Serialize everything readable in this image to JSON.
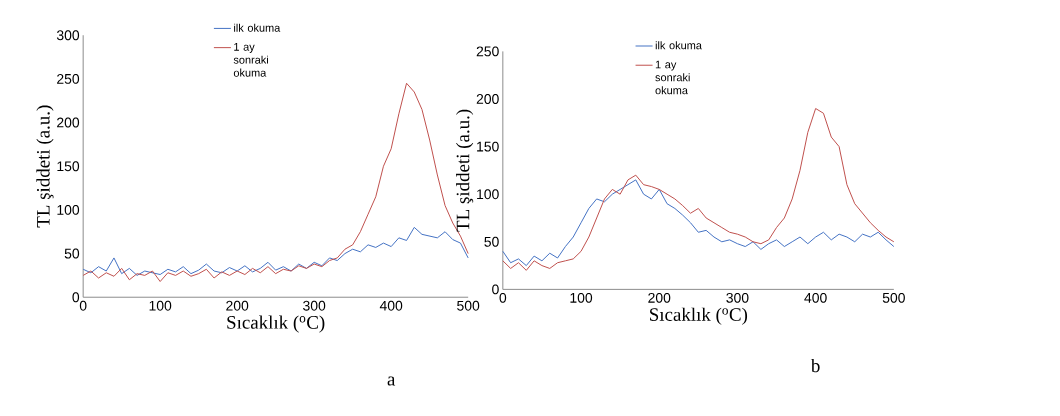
{
  "chart_data": [
    {
      "type": "line",
      "xlabel": "Sıcaklık ($^{o}$C)",
      "ylabel": "TL şiddeti (a.u.)",
      "annotations": [
        "a"
      ],
      "marker": "none",
      "legend": "top",
      "x": [
        0,
        10,
        20,
        30,
        40,
        50,
        60,
        70,
        80,
        90,
        100,
        110,
        120,
        130,
        140,
        150,
        160,
        170,
        180,
        190,
        200,
        210,
        220,
        230,
        240,
        250,
        260,
        270,
        280,
        290,
        300,
        310,
        320,
        330,
        340,
        350,
        360,
        370,
        380,
        390,
        400,
        410,
        420,
        430,
        440,
        450,
        460,
        470,
        480,
        490,
        500
      ],
      "xlim": [
        0,
        500
      ],
      "xticks": [
        0,
        100,
        200,
        300,
        400,
        500
      ],
      "ylim": [
        0,
        300
      ],
      "yticks": [
        0,
        50,
        100,
        150,
        200,
        250,
        300
      ],
      "series": [
        {
          "name": "ilk okuma",
          "color": "#4472c4",
          "values": [
            32,
            28,
            35,
            30,
            45,
            27,
            33,
            25,
            30,
            28,
            26,
            32,
            29,
            35,
            27,
            31,
            38,
            30,
            28,
            34,
            30,
            36,
            29,
            33,
            40,
            31,
            35,
            30,
            38,
            33,
            40,
            36,
            45,
            42,
            50,
            55,
            52,
            60,
            57,
            62,
            58,
            68,
            65,
            80,
            72,
            70,
            68,
            75,
            66,
            62,
            45
          ]
        },
        {
          "name": "1 ay sonraki okuma",
          "color": "#c0504d",
          "values": [
            25,
            30,
            22,
            28,
            24,
            33,
            20,
            27,
            25,
            30,
            18,
            28,
            25,
            30,
            24,
            27,
            32,
            22,
            29,
            25,
            30,
            26,
            33,
            28,
            35,
            27,
            32,
            30,
            36,
            33,
            38,
            35,
            42,
            45,
            55,
            60,
            75,
            95,
            115,
            150,
            170,
            210,
            245,
            235,
            215,
            180,
            140,
            105,
            85,
            70,
            50
          ]
        }
      ]
    },
    {
      "type": "line",
      "xlabel": "Sıcaklık ($^{o}$C)",
      "ylabel": "TL şiddeti (a.u.)",
      "annotations": [
        "b"
      ],
      "marker": "none",
      "legend": "top",
      "x": [
        0,
        10,
        20,
        30,
        40,
        50,
        60,
        70,
        80,
        90,
        100,
        110,
        120,
        130,
        140,
        150,
        160,
        170,
        180,
        190,
        200,
        210,
        220,
        230,
        240,
        250,
        260,
        270,
        280,
        290,
        300,
        310,
        320,
        330,
        340,
        350,
        360,
        370,
        380,
        390,
        400,
        410,
        420,
        430,
        440,
        450,
        460,
        470,
        480,
        490,
        500
      ],
      "xlim": [
        0,
        500
      ],
      "xticks": [
        0,
        100,
        200,
        300,
        400,
        500
      ],
      "ylim": [
        0,
        250
      ],
      "yticks": [
        0,
        50,
        100,
        150,
        200,
        250
      ],
      "series": [
        {
          "name": "ilk okuma",
          "color": "#4472c4",
          "values": [
            40,
            28,
            32,
            25,
            35,
            30,
            38,
            33,
            45,
            55,
            70,
            85,
            95,
            92,
            100,
            105,
            110,
            115,
            100,
            95,
            105,
            90,
            85,
            78,
            70,
            60,
            62,
            55,
            50,
            52,
            48,
            45,
            50,
            42,
            48,
            52,
            45,
            50,
            55,
            48,
            55,
            60,
            52,
            58,
            55,
            50,
            58,
            55,
            60,
            52,
            45
          ]
        },
        {
          "name": "1 ay sonraki okuma",
          "color": "#c0504d",
          "values": [
            30,
            22,
            28,
            20,
            30,
            25,
            22,
            28,
            30,
            32,
            40,
            55,
            75,
            95,
            105,
            100,
            115,
            120,
            110,
            108,
            105,
            100,
            95,
            88,
            80,
            85,
            75,
            70,
            65,
            60,
            58,
            55,
            50,
            48,
            52,
            65,
            75,
            95,
            125,
            165,
            190,
            185,
            160,
            150,
            110,
            90,
            80,
            70,
            62,
            55,
            50
          ]
        }
      ]
    }
  ]
}
